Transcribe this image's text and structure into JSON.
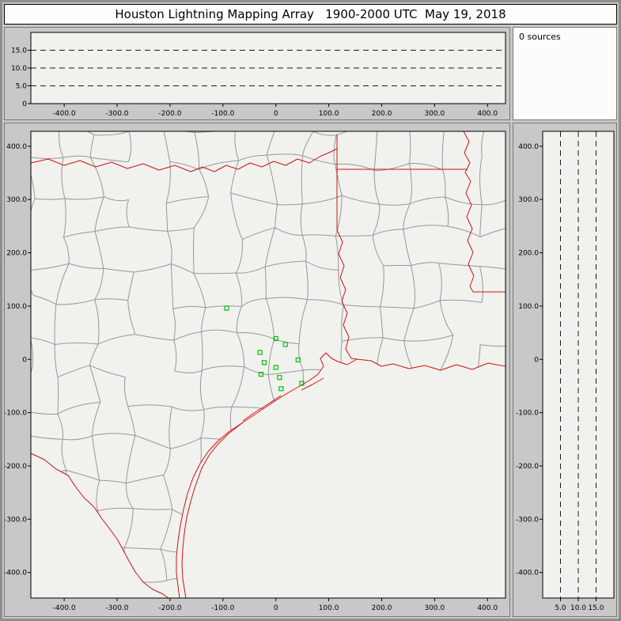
{
  "title": "Houston Lightning Mapping Array   1900-2000 UTC  May 19, 2018",
  "sources_panel": {
    "label": "0 sources",
    "count": 0
  },
  "colors": {
    "window_bg": "#c8c8c8",
    "plot_bg": "#f1f1ee",
    "panel_white": "#fcfcfb",
    "county_line": "#979797",
    "state_border": "#cc1414",
    "station": "#00c300",
    "dash": "#1c1c1c",
    "text": "#000000"
  },
  "chart_data": [
    {
      "type": "scatter",
      "panel": "altitude-vs-east-west",
      "title": "",
      "xlim": [
        -463,
        434
      ],
      "ylim": [
        0,
        20
      ],
      "x_ticks": [
        -400,
        -300,
        -200,
        -100,
        0,
        100,
        200,
        300,
        400
      ],
      "x_tick_labels": [
        "-400.0",
        "-300.0",
        "-200.0",
        "-100.0",
        "0",
        "100.0",
        "200.0",
        "300.0",
        "400.0"
      ],
      "y_ticks": [
        0,
        5,
        10,
        15
      ],
      "y_tick_labels": [
        "0",
        "5.0",
        "10.0",
        "15.0"
      ],
      "dashed_hlines": [
        5,
        10,
        15
      ],
      "grid": true,
      "points": []
    },
    {
      "type": "scatter",
      "panel": "plan-view-map",
      "title": "",
      "xlim": [
        -463,
        434
      ],
      "ylim": [
        -448,
        428
      ],
      "x_ticks": [
        -400,
        -300,
        -200,
        -100,
        0,
        100,
        200,
        300,
        400
      ],
      "x_tick_labels": [
        "-400.0",
        "-300.0",
        "-200.0",
        "-100.0",
        "0",
        "100.0",
        "200.0",
        "300.0",
        "400.0"
      ],
      "y_ticks": [
        400,
        300,
        200,
        100,
        0,
        -100,
        -200,
        -300,
        -400
      ],
      "y_tick_labels": [
        "400.0",
        "300.0",
        "200.0",
        "100.0",
        "0",
        "-100.0",
        "-200.0",
        "-300.0",
        "-400.0"
      ],
      "stations_km": [
        [
          -93,
          96
        ],
        [
          0,
          39
        ],
        [
          18,
          28
        ],
        [
          -30,
          13
        ],
        [
          -22,
          -6
        ],
        [
          0,
          -15
        ],
        [
          -28,
          -28
        ],
        [
          7,
          -34
        ],
        [
          42,
          -1
        ],
        [
          49,
          -45
        ],
        [
          10,
          -55
        ]
      ],
      "points": []
    },
    {
      "type": "scatter",
      "panel": "altitude-vs-north-south",
      "title": "",
      "xlim": [
        0,
        20
      ],
      "ylim": [
        -448,
        428
      ],
      "x_ticks": [
        5,
        10,
        15
      ],
      "x_tick_labels": [
        "5.0",
        "10.0",
        "15.0"
      ],
      "y_ticks": [
        400,
        300,
        200,
        100,
        0,
        -100,
        -200,
        -300,
        -400
      ],
      "y_tick_labels": [
        "400.0",
        "300.0",
        "200.0",
        "100.0",
        "0",
        "-100.0",
        "-200.0",
        "-300.0",
        "-400.0"
      ],
      "dashed_vlines": [
        5,
        10,
        15
      ],
      "grid": true,
      "points": []
    },
    {
      "type": "histogram",
      "panel": "source-count",
      "label": "0 sources",
      "values": []
    }
  ]
}
